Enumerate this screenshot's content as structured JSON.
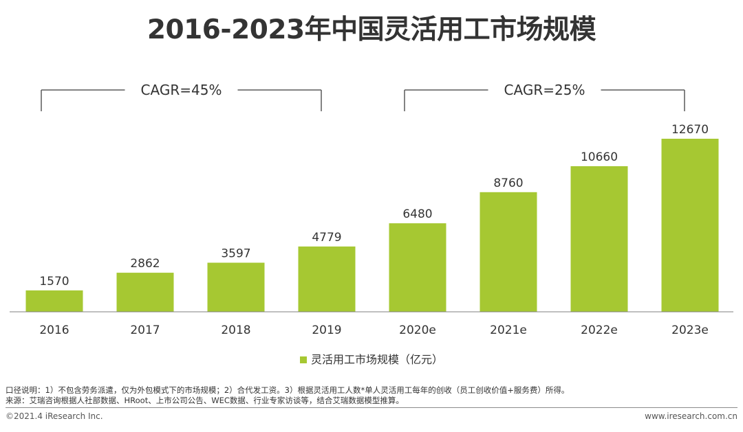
{
  "chart_data": {
    "type": "bar",
    "title": "2016-2023年中国灵活用工市场规模",
    "categories": [
      "2016",
      "2017",
      "2018",
      "2019",
      "2020e",
      "2021e",
      "2022e",
      "2023e"
    ],
    "series": [
      {
        "name": "灵活用工市场规模（亿元）",
        "values": [
          1570,
          2862,
          3597,
          4779,
          6480,
          8760,
          10660,
          12670
        ],
        "color": "#a6c832"
      }
    ],
    "data_labels": [
      "1570",
      "2862",
      "3597",
      "4779",
      "6480",
      "8760",
      "10660",
      "12670"
    ],
    "ylim": [
      0,
      12670
    ],
    "grid": false,
    "legend_position": "bottom-center",
    "annotations": [
      {
        "text": "CAGR=45%",
        "from_category": "2016",
        "to_category": "2019"
      },
      {
        "text": "CAGR=25%",
        "from_category": "2020e",
        "to_category": "2023e"
      }
    ]
  },
  "notes": {
    "line1": "口径说明：1）不包含劳务派遣，仅为外包模式下的市场规模；2）合代发工资。3）根据灵活用工人数*单人灵活用工每年的创收（员工创收价值+服务费）所得。",
    "line2": "来源：艾瑞咨询根据人社部数据、HRoot、上市公司公告、WEC数据、行业专家访谈等，结合艾瑞数据模型推算。"
  },
  "footer": {
    "copyright": "©2021.4 iResearch Inc.",
    "website": "www.iresearch.com.cn"
  },
  "colors": {
    "bar": "#a6c832",
    "axis": "#7f7f7f",
    "bracket": "#595959",
    "text": "#333333"
  }
}
